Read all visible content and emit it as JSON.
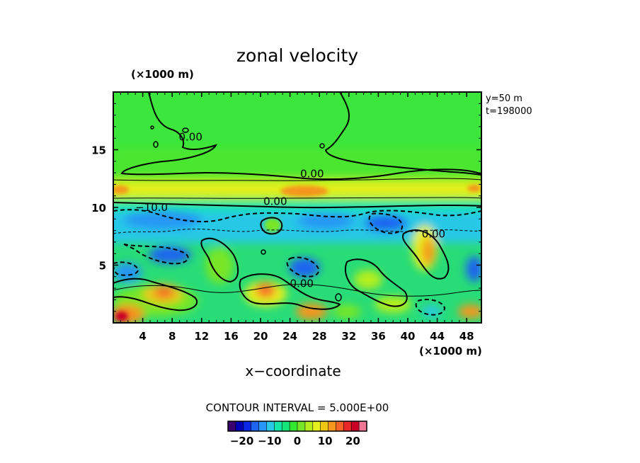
{
  "chart_data": {
    "type": "heatmap",
    "title": "zonal velocity",
    "xlabel": "x−coordinate",
    "ylabel": "",
    "x_unit": "(×1000 m)",
    "y_unit": "(×1000 m)",
    "xlim": [
      0,
      50
    ],
    "ylim": [
      0,
      20
    ],
    "x_ticks": [
      4,
      8,
      12,
      16,
      20,
      24,
      28,
      32,
      36,
      40,
      44,
      48
    ],
    "y_ticks": [
      5,
      10,
      15
    ],
    "info": [
      "y=50  m",
      "t=198000"
    ],
    "contour_interval_text": "CONTOUR INTERVAL = 5.000E+00",
    "contour_labels": [
      {
        "text": "0.00",
        "x": 10.5,
        "y": 15.8
      },
      {
        "text": "0.00",
        "x": 27.0,
        "y": 12.6
      },
      {
        "text": "0.00",
        "x": 22.0,
        "y": 10.2
      },
      {
        "text": "−10.0",
        "x": 5.2,
        "y": 9.7
      },
      {
        "text": "0.00",
        "x": 43.5,
        "y": 7.4
      },
      {
        "text": "0.00",
        "x": 25.6,
        "y": 3.1
      }
    ],
    "colorbar": {
      "ticks": [
        -20,
        -10,
        0,
        10,
        20
      ],
      "tick_labels": [
        "−20",
        "−10",
        "0",
        "10",
        "20"
      ],
      "range": [
        -25,
        25
      ],
      "colors": [
        "#3a006f",
        "#0000b4",
        "#0a28e6",
        "#1e64f0",
        "#2896f5",
        "#28c8e6",
        "#14e6aa",
        "#14e678",
        "#32e632",
        "#78e628",
        "#b4ee1e",
        "#e6f01e",
        "#f0c814",
        "#f5961e",
        "#f56428",
        "#eb2828",
        "#c80028",
        "#f07896"
      ]
    },
    "approx_fields": {
      "jet_band_y": [
        10.0,
        13.0
      ],
      "jet_max_speed": 15,
      "upper_region_speed": 5,
      "lower_region_speed_range": [
        -15,
        25
      ]
    }
  }
}
